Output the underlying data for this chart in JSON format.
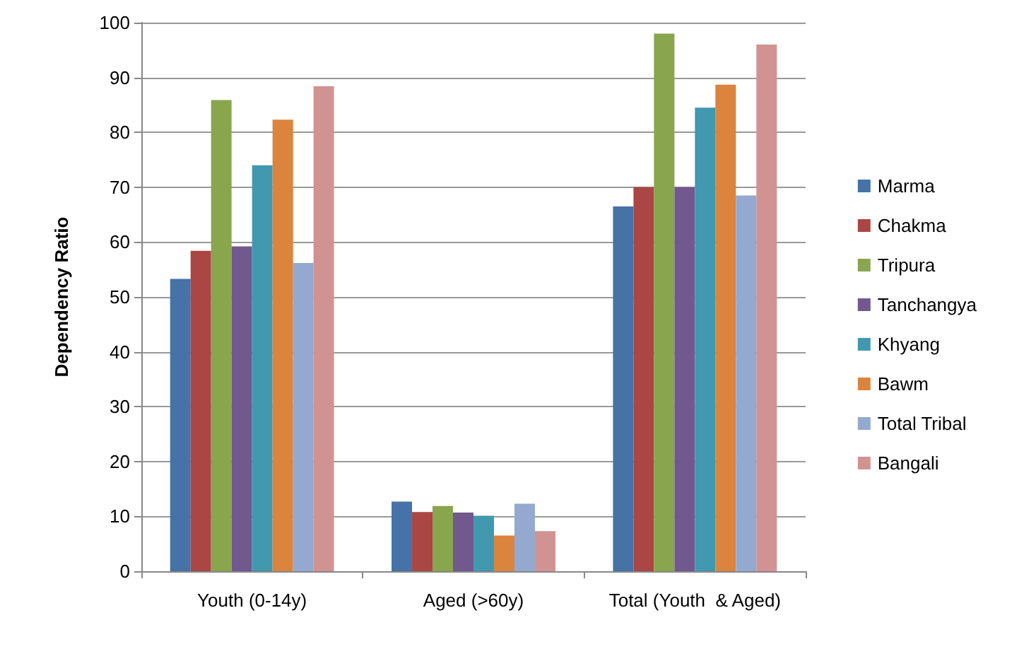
{
  "chart_data": {
    "type": "bar",
    "ylabel": "Dependency Ratio",
    "categories": [
      "Youth (0-14y)",
      "Aged (>60y)",
      "Total (Youth  & Aged)"
    ],
    "series": [
      {
        "name": "Marma",
        "color": "#4572a7",
        "values": [
          53.3,
          12.7,
          66.5
        ]
      },
      {
        "name": "Chakma",
        "color": "#aa4643",
        "values": [
          58.4,
          10.8,
          70
        ]
      },
      {
        "name": "Tripura",
        "color": "#89a54e",
        "values": [
          85.9,
          11.9,
          98
        ]
      },
      {
        "name": "Tanchangya",
        "color": "#71588f",
        "values": [
          59.2,
          10.7,
          70
        ]
      },
      {
        "name": "Khyang",
        "color": "#4198af",
        "values": [
          74,
          10.1,
          84.5
        ]
      },
      {
        "name": "Bawm",
        "color": "#db843d",
        "values": [
          82.3,
          6.5,
          88.7
        ]
      },
      {
        "name": "Total Tribal",
        "color": "#93a9cf",
        "values": [
          56.2,
          12.3,
          68.5
        ]
      },
      {
        "name": "Bangali",
        "color": "#d19392",
        "values": [
          88.4,
          7.3,
          96
        ]
      }
    ],
    "ylim": [
      0,
      100
    ],
    "yticks": [
      0,
      10,
      20,
      30,
      40,
      50,
      60,
      70,
      80,
      90,
      100
    ],
    "grid": "y",
    "legend": "right"
  }
}
